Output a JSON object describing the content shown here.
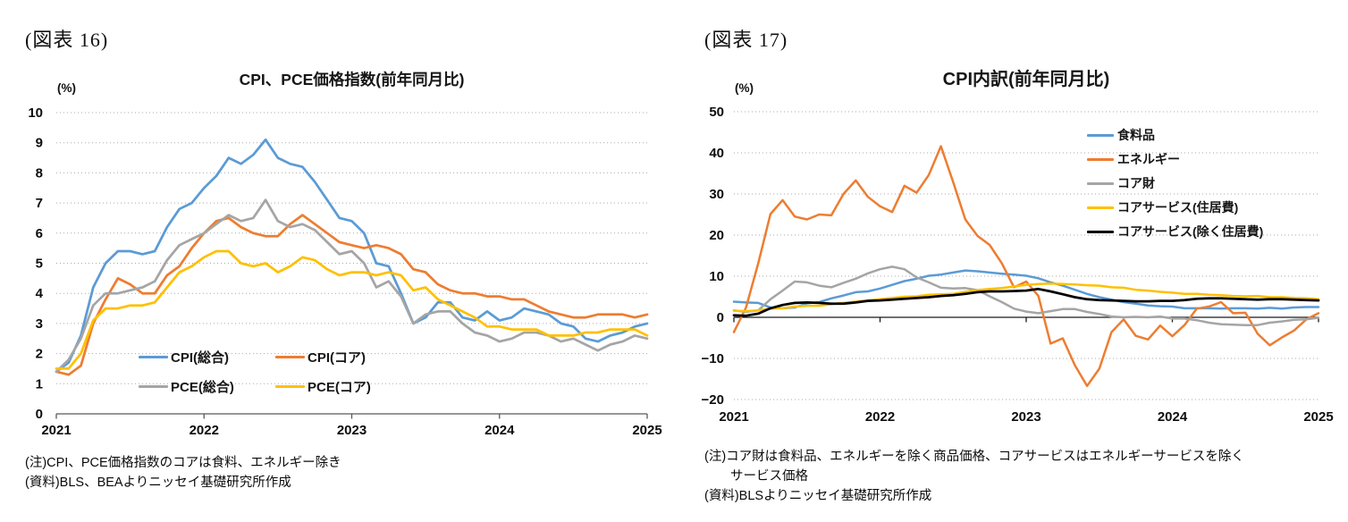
{
  "figures": [
    {
      "label": "(図表 16)",
      "unit": "(%)",
      "notes": [
        "(注)CPI、PCE価格指数のコアは食料、エネルギー除き",
        "(資料)BLS、BEAよりニッセイ基礎研究所作成"
      ]
    },
    {
      "label": "(図表 17)",
      "unit": "(%)",
      "notes": [
        "(注)コア財は食料品、エネルギーを除く商品価格、コアサービスはエネルギーサービスを除く",
        "　　サービス価格",
        "(資料)BLSよりニッセイ基礎研究所作成"
      ]
    }
  ],
  "chart_data": [
    {
      "type": "line",
      "title": "CPI、PCE価格指数(前年同月比)",
      "ylabel": "%",
      "ylim": [
        0,
        10
      ],
      "grid": "horizontal-dotted",
      "legend_position": "inside-bottom-center",
      "y_tick_values": [
        10,
        9,
        8,
        7,
        6,
        5,
        4,
        3,
        2,
        1,
        0
      ],
      "y_tick_labels": [
        "10",
        "9",
        "8",
        "7",
        "6",
        "5",
        "4",
        "3",
        "2",
        "1",
        "0"
      ],
      "x_tick_labels": [
        "2021",
        "2022",
        "2023",
        "2024",
        "2025"
      ],
      "x_tick_month_index": [
        0,
        12,
        24,
        36,
        48
      ],
      "x_months": [
        "2021-01",
        "2021-02",
        "2021-03",
        "2021-04",
        "2021-05",
        "2021-06",
        "2021-07",
        "2021-08",
        "2021-09",
        "2021-10",
        "2021-11",
        "2021-12",
        "2022-01",
        "2022-02",
        "2022-03",
        "2022-04",
        "2022-05",
        "2022-06",
        "2022-07",
        "2022-08",
        "2022-09",
        "2022-10",
        "2022-11",
        "2022-12",
        "2023-01",
        "2023-02",
        "2023-03",
        "2023-04",
        "2023-05",
        "2023-06",
        "2023-07",
        "2023-08",
        "2023-09",
        "2023-10",
        "2023-11",
        "2023-12",
        "2024-01",
        "2024-02",
        "2024-03",
        "2024-04",
        "2024-05",
        "2024-06",
        "2024-07",
        "2024-08",
        "2024-09",
        "2024-10",
        "2024-11",
        "2024-12",
        "2025-01"
      ],
      "series": [
        {
          "name": "CPI(総合)",
          "color": "#5B9BD5",
          "values": [
            1.4,
            1.7,
            2.6,
            4.2,
            5.0,
            5.4,
            5.4,
            5.3,
            5.4,
            6.2,
            6.8,
            7.0,
            7.5,
            7.9,
            8.5,
            8.3,
            8.6,
            9.1,
            8.5,
            8.3,
            8.2,
            7.7,
            7.1,
            6.5,
            6.4,
            6.0,
            5.0,
            4.9,
            4.0,
            3.0,
            3.2,
            3.7,
            3.7,
            3.2,
            3.1,
            3.4,
            3.1,
            3.2,
            3.5,
            3.4,
            3.3,
            3.0,
            2.9,
            2.5,
            2.4,
            2.6,
            2.7,
            2.9,
            3.0
          ]
        },
        {
          "name": "CPI(コア)",
          "color": "#ED7D31",
          "values": [
            1.4,
            1.3,
            1.6,
            3.0,
            3.8,
            4.5,
            4.3,
            4.0,
            4.0,
            4.6,
            4.9,
            5.5,
            6.0,
            6.4,
            6.5,
            6.2,
            6.0,
            5.9,
            5.9,
            6.3,
            6.6,
            6.3,
            6.0,
            5.7,
            5.6,
            5.5,
            5.6,
            5.5,
            5.3,
            4.8,
            4.7,
            4.3,
            4.1,
            4.0,
            4.0,
            3.9,
            3.9,
            3.8,
            3.8,
            3.6,
            3.4,
            3.3,
            3.2,
            3.2,
            3.3,
            3.3,
            3.3,
            3.2,
            3.3
          ]
        },
        {
          "name": "PCE(総合)",
          "color": "#A5A5A5",
          "values": [
            1.4,
            1.8,
            2.5,
            3.6,
            4.0,
            4.0,
            4.1,
            4.2,
            4.4,
            5.1,
            5.6,
            5.8,
            6.0,
            6.3,
            6.6,
            6.4,
            6.5,
            7.1,
            6.4,
            6.2,
            6.3,
            6.1,
            5.7,
            5.3,
            5.4,
            5.0,
            4.2,
            4.4,
            3.9,
            3.0,
            3.3,
            3.4,
            3.4,
            3.0,
            2.7,
            2.6,
            2.4,
            2.5,
            2.7,
            2.7,
            2.6,
            2.4,
            2.5,
            2.3,
            2.1,
            2.3,
            2.4,
            2.6,
            2.5
          ]
        },
        {
          "name": "PCE(コア)",
          "color": "#FFC000",
          "values": [
            1.5,
            1.5,
            2.0,
            3.1,
            3.5,
            3.5,
            3.6,
            3.6,
            3.7,
            4.2,
            4.7,
            4.9,
            5.2,
            5.4,
            5.4,
            5.0,
            4.9,
            5.0,
            4.7,
            4.9,
            5.2,
            5.1,
            4.8,
            4.6,
            4.7,
            4.7,
            4.6,
            4.7,
            4.6,
            4.1,
            4.2,
            3.8,
            3.6,
            3.4,
            3.2,
            2.9,
            2.9,
            2.8,
            2.8,
            2.8,
            2.6,
            2.6,
            2.6,
            2.7,
            2.7,
            2.8,
            2.8,
            2.8,
            2.6
          ]
        }
      ]
    },
    {
      "type": "line",
      "title": "CPI内訳(前年同月比)",
      "ylabel": "%",
      "ylim": [
        -20,
        50
      ],
      "grid": "horizontal-dotted",
      "legend_position": "inside-top-right",
      "y_tick_values": [
        50,
        40,
        30,
        20,
        10,
        0,
        -10,
        -20
      ],
      "y_tick_labels": [
        "50",
        "40",
        "30",
        "20",
        "10",
        "0",
        "−10",
        "−20"
      ],
      "x_tick_labels": [
        "2021",
        "2022",
        "2023",
        "2024",
        "2025"
      ],
      "x_tick_month_index": [
        0,
        12,
        24,
        36,
        48
      ],
      "x_months": [
        "2021-01",
        "2021-02",
        "2021-03",
        "2021-04",
        "2021-05",
        "2021-06",
        "2021-07",
        "2021-08",
        "2021-09",
        "2021-10",
        "2021-11",
        "2021-12",
        "2022-01",
        "2022-02",
        "2022-03",
        "2022-04",
        "2022-05",
        "2022-06",
        "2022-07",
        "2022-08",
        "2022-09",
        "2022-10",
        "2022-11",
        "2022-12",
        "2023-01",
        "2023-02",
        "2023-03",
        "2023-04",
        "2023-05",
        "2023-06",
        "2023-07",
        "2023-08",
        "2023-09",
        "2023-10",
        "2023-11",
        "2023-12",
        "2024-01",
        "2024-02",
        "2024-03",
        "2024-04",
        "2024-05",
        "2024-06",
        "2024-07",
        "2024-08",
        "2024-09",
        "2024-10",
        "2024-11",
        "2024-12",
        "2025-01"
      ],
      "series": [
        {
          "name": "食料品",
          "color": "#5B9BD5",
          "values": [
            3.8,
            3.6,
            3.5,
            2.4,
            2.2,
            2.4,
            3.4,
            3.7,
            4.6,
            5.3,
            6.1,
            6.3,
            7.0,
            7.9,
            8.8,
            9.4,
            10.1,
            10.4,
            10.9,
            11.4,
            11.2,
            10.9,
            10.6,
            10.4,
            10.1,
            9.5,
            8.5,
            7.7,
            6.7,
            5.7,
            4.9,
            4.3,
            3.7,
            3.3,
            2.9,
            2.7,
            2.6,
            2.2,
            2.2,
            2.2,
            2.1,
            2.2,
            2.2,
            2.1,
            2.3,
            2.1,
            2.4,
            2.5,
            2.5
          ]
        },
        {
          "name": "エネルギー",
          "color": "#ED7D31",
          "values": [
            -3.6,
            2.4,
            13.2,
            25.1,
            28.5,
            24.5,
            23.8,
            25.0,
            24.8,
            30.0,
            33.3,
            29.3,
            27.0,
            25.6,
            32.0,
            30.3,
            34.6,
            41.6,
            32.9,
            23.8,
            19.8,
            17.6,
            13.1,
            7.3,
            8.7,
            5.2,
            -6.4,
            -5.1,
            -11.7,
            -16.7,
            -12.5,
            -3.6,
            -0.5,
            -4.5,
            -5.4,
            -2.0,
            -4.6,
            -1.9,
            2.1,
            2.6,
            3.7,
            1.0,
            1.1,
            -4.0,
            -6.8,
            -4.9,
            -3.2,
            -0.5,
            1.0
          ]
        },
        {
          "name": "コア財",
          "color": "#A5A5A5",
          "values": [
            1.7,
            1.3,
            1.7,
            4.4,
            6.5,
            8.7,
            8.5,
            7.7,
            7.3,
            8.4,
            9.4,
            10.7,
            11.7,
            12.3,
            11.7,
            9.7,
            8.5,
            7.2,
            7.0,
            7.1,
            6.6,
            5.1,
            3.7,
            2.1,
            1.4,
            1.0,
            1.5,
            2.0,
            2.0,
            1.3,
            0.8,
            0.2,
            0.0,
            0.1,
            0.0,
            0.2,
            -0.3,
            -0.3,
            -0.7,
            -1.3,
            -1.7,
            -1.8,
            -1.9,
            -1.9,
            -1.3,
            -1.0,
            -0.6,
            -0.5,
            -0.1
          ]
        },
        {
          "name": "コアサービス(住居費)",
          "color": "#FFC000",
          "values": [
            1.6,
            1.5,
            1.7,
            2.1,
            2.2,
            2.6,
            2.8,
            2.8,
            3.2,
            3.5,
            3.8,
            4.1,
            4.4,
            4.7,
            5.0,
            5.1,
            5.5,
            5.6,
            5.7,
            6.2,
            6.6,
            6.9,
            7.1,
            7.5,
            7.9,
            8.1,
            8.2,
            8.1,
            8.0,
            7.8,
            7.7,
            7.3,
            7.2,
            6.7,
            6.5,
            6.2,
            6.0,
            5.7,
            5.7,
            5.5,
            5.4,
            5.2,
            5.1,
            5.2,
            4.9,
            4.9,
            4.7,
            4.6,
            4.4
          ]
        },
        {
          "name": "コアサービス(除く住居費)",
          "color": "#000000",
          "values": [
            0.5,
            0.4,
            0.9,
            2.2,
            3.0,
            3.5,
            3.6,
            3.5,
            3.3,
            3.3,
            3.6,
            4.0,
            4.1,
            4.3,
            4.5,
            4.7,
            4.9,
            5.2,
            5.4,
            5.7,
            6.1,
            6.3,
            6.3,
            6.4,
            6.5,
            6.9,
            6.3,
            5.6,
            4.9,
            4.4,
            4.2,
            4.1,
            4.0,
            3.9,
            3.9,
            4.0,
            4.0,
            4.2,
            4.5,
            4.6,
            4.6,
            4.5,
            4.4,
            4.3,
            4.4,
            4.4,
            4.3,
            4.2,
            4.1
          ]
        }
      ]
    }
  ]
}
